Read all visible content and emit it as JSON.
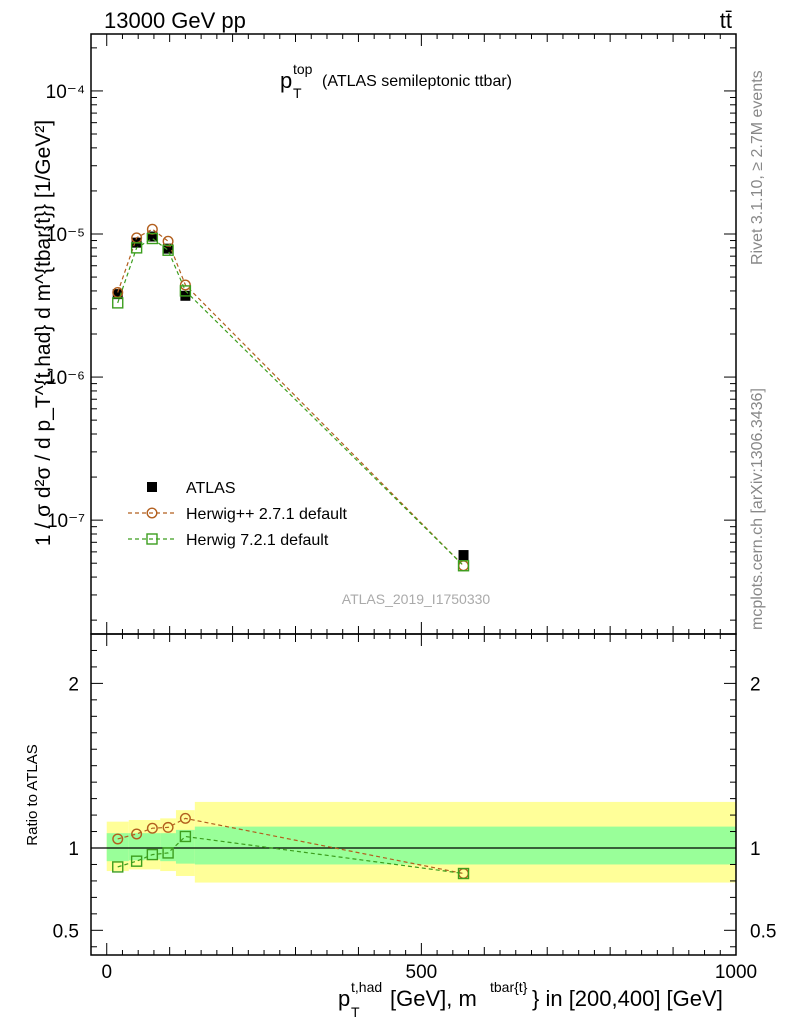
{
  "header": {
    "energy": "13000 GeV pp",
    "process": "tt̄"
  },
  "side": {
    "rivet": "Rivet 3.1.10, ≥ 2.7M events",
    "mcplots": "mcplots.cern.ch [arXiv:1306.3436]"
  },
  "chart_data": [
    {
      "type": "scatter",
      "panel": "main",
      "title_main": "p",
      "title_sup": "top",
      "title_sub": "T",
      "title_rest": "(ATLAS semileptonic ttbar)",
      "watermark": "ATLAS_2019_I1750330",
      "ylabel": "1 / σ d²σ / d p_T^{t,had} d m^{tbar{t}} [1/GeV²]",
      "yscale": "log",
      "ylim": [
        1.6e-08,
        0.00025
      ],
      "xlim": [
        -25,
        1000
      ],
      "y_tick_labels": [
        "10⁻⁷",
        "10⁻⁶",
        "10⁻⁵",
        "10⁻⁴"
      ],
      "y_tick_values": [
        1e-07,
        1e-06,
        1e-05,
        0.0001
      ],
      "legend_position": "bottom-left",
      "series": [
        {
          "name": "ATLAS",
          "style": "filled-square",
          "color": "#000000",
          "points": [
            {
              "x": 17.5,
              "y": 3.8e-06
            },
            {
              "x": 47.5,
              "y": 8.7e-06
            },
            {
              "x": 72.5,
              "y": 9.6e-06
            },
            {
              "x": 97.5,
              "y": 7.9e-06
            },
            {
              "x": 125,
              "y": 3.7e-06
            },
            {
              "x": 567,
              "y": 5.7e-08
            }
          ]
        },
        {
          "name": "Herwig++ 2.7.1 default",
          "style": "open-circle",
          "color": "#b25f1e",
          "points": [
            {
              "x": 17.5,
              "y": 3.9e-06
            },
            {
              "x": 47.5,
              "y": 9.4e-06
            },
            {
              "x": 72.5,
              "y": 1.08e-05
            },
            {
              "x": 97.5,
              "y": 8.9e-06
            },
            {
              "x": 125,
              "y": 4.4e-06
            },
            {
              "x": 567,
              "y": 4.8e-08
            }
          ]
        },
        {
          "name": "Herwig 7.2.1 default",
          "style": "open-square",
          "color": "#3c9e1e",
          "points": [
            {
              "x": 17.5,
              "y": 3.3e-06
            },
            {
              "x": 47.5,
              "y": 8e-06
            },
            {
              "x": 72.5,
              "y": 9.3e-06
            },
            {
              "x": 97.5,
              "y": 7.7e-06
            },
            {
              "x": 125,
              "y": 4e-06
            },
            {
              "x": 567,
              "y": 4.8e-08
            }
          ]
        }
      ]
    },
    {
      "type": "scatter",
      "panel": "ratio",
      "ylabel": "Ratio to ATLAS",
      "ylim": [
        0.35,
        2.3
      ],
      "xlim": [
        -25,
        1000
      ],
      "y_tick_labels": [
        "0.5",
        "1",
        "2"
      ],
      "y_tick_values": [
        0.5,
        1,
        2
      ],
      "x_tick_labels": [
        "0",
        "500",
        "1000"
      ],
      "x_tick_values": [
        0,
        500,
        1000
      ],
      "xlabel_main": "p",
      "xlabel_sup": "t,had",
      "xlabel_sub": "T",
      "xlabel_mid": " [GeV], m",
      "xlabel_sup2": "tbar{t}",
      "xlabel_end": "} in [200,400] [GeV]",
      "bands": [
        {
          "x0": 0,
          "x1": 35,
          "yellow": [
            0.86,
            1.16
          ],
          "green": [
            0.92,
            1.09
          ]
        },
        {
          "x0": 35,
          "x1": 60,
          "yellow": [
            0.87,
            1.17
          ],
          "green": [
            0.925,
            1.09
          ]
        },
        {
          "x0": 60,
          "x1": 85,
          "yellow": [
            0.87,
            1.17
          ],
          "green": [
            0.93,
            1.09
          ]
        },
        {
          "x0": 85,
          "x1": 110,
          "yellow": [
            0.86,
            1.18
          ],
          "green": [
            0.92,
            1.09
          ]
        },
        {
          "x0": 110,
          "x1": 140,
          "yellow": [
            0.83,
            1.23
          ],
          "green": [
            0.905,
            1.11
          ]
        },
        {
          "x0": 140,
          "x1": 1000,
          "yellow": [
            0.79,
            1.28
          ],
          "green": [
            0.9,
            1.13
          ]
        }
      ],
      "reference": 1.0,
      "series": [
        {
          "name": "Herwig++ 2.7.1 default",
          "style": "open-circle",
          "color": "#b25f1e",
          "points": [
            {
              "x": 17.5,
              "y": 1.055
            },
            {
              "x": 47.5,
              "y": 1.085
            },
            {
              "x": 72.5,
              "y": 1.12
            },
            {
              "x": 97.5,
              "y": 1.125
            },
            {
              "x": 125,
              "y": 1.18
            },
            {
              "x": 567,
              "y": 0.845
            }
          ]
        },
        {
          "name": "Herwig 7.2.1 default",
          "style": "open-square",
          "color": "#3c9e1e",
          "points": [
            {
              "x": 17.5,
              "y": 0.885
            },
            {
              "x": 47.5,
              "y": 0.92
            },
            {
              "x": 72.5,
              "y": 0.96
            },
            {
              "x": 97.5,
              "y": 0.97
            },
            {
              "x": 125,
              "y": 1.07
            },
            {
              "x": 567,
              "y": 0.845
            }
          ]
        }
      ]
    }
  ]
}
